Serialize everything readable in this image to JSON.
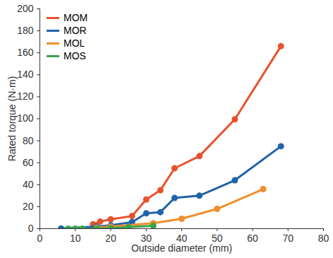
{
  "chart_data": {
    "type": "line",
    "x_label": "Outside diameter (mm)",
    "y_label": "Rated torque (N·m)",
    "xlim": [
      0,
      80
    ],
    "xticks": [
      0,
      10,
      20,
      30,
      40,
      50,
      60,
      70,
      80
    ],
    "ylim": [
      0,
      200
    ],
    "yticks": [
      0,
      20,
      40,
      60,
      80,
      100,
      120,
      140,
      160,
      180,
      200
    ],
    "grid": false,
    "legend": "top-left",
    "marker": "circle",
    "series": [
      {
        "name": "MOM",
        "color": "#e8522c",
        "x": [
          15,
          17,
          20,
          26,
          30,
          34,
          38,
          45,
          55,
          68
        ],
        "values": [
          4,
          6.5,
          8.5,
          11.5,
          26.5,
          35,
          55,
          66,
          99.5,
          166
        ]
      },
      {
        "name": "MOR",
        "color": "#1f63a8",
        "x": [
          6,
          16,
          20,
          26,
          30,
          34,
          38,
          45,
          55,
          68
        ],
        "values": [
          0.2,
          2,
          3,
          6,
          14,
          15,
          28,
          30,
          44,
          75
        ]
      },
      {
        "name": "MOL",
        "color": "#ef8f2e",
        "x": [
          16,
          20,
          32,
          40,
          50,
          63
        ],
        "values": [
          1,
          2,
          5,
          9,
          18,
          36
        ]
      },
      {
        "name": "MOS",
        "color": "#3aa34a",
        "x": [
          8,
          10,
          12,
          16,
          20,
          25,
          32
        ],
        "values": [
          0,
          0,
          0,
          0,
          0.5,
          1.5,
          2.5
        ]
      }
    ]
  }
}
